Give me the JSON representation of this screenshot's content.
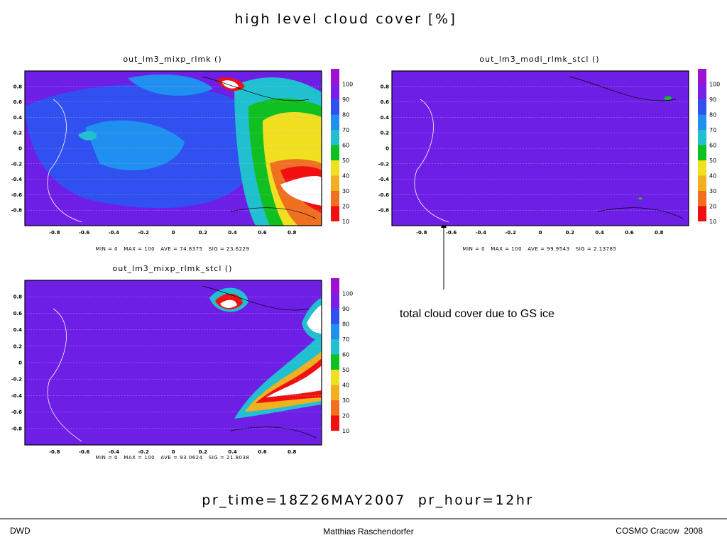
{
  "header": {
    "title": "high level cloud cover [%]"
  },
  "panels": [
    {
      "title": "out_lm3_mixp_rlmk ()",
      "stats": "MIN = 0   MAX = 100   AVE = 74.8375   SIG = 23.6229"
    },
    {
      "title": "out_lm3_modi_rlmk_stcl ()",
      "stats": "MIN = 0   MAX = 100   AVE = 99.9543   SIG = 2.13785"
    },
    {
      "title": "out_lm3_mixp_rlmk_stcl ()",
      "stats": "MIN = 0   MAX = 100   AVE = 93.0624   SIG = 21.8038"
    }
  ],
  "axis": {
    "xticks": [
      "-0.8",
      "-0.6",
      "-0.4",
      "-0.2",
      "0",
      "0.2",
      "0.4",
      "0.6",
      "0.8"
    ],
    "yticks": [
      "0.8",
      "0.6",
      "0.4",
      "0.2",
      "0",
      "-0.2",
      "-0.4",
      "-0.6",
      "-0.8"
    ]
  },
  "colorbar": {
    "labels": [
      "100",
      "90",
      "80",
      "70",
      "60",
      "50",
      "40",
      "30",
      "20",
      "10"
    ]
  },
  "annotation": "total cloud cover due to GS ice",
  "time": "pr_time=18Z26MAY2007  pr_hour=12hr",
  "footer": {
    "left": "DWD",
    "center": "Matthias Raschendorfer",
    "right": "COSMO Cracow  2008"
  }
}
